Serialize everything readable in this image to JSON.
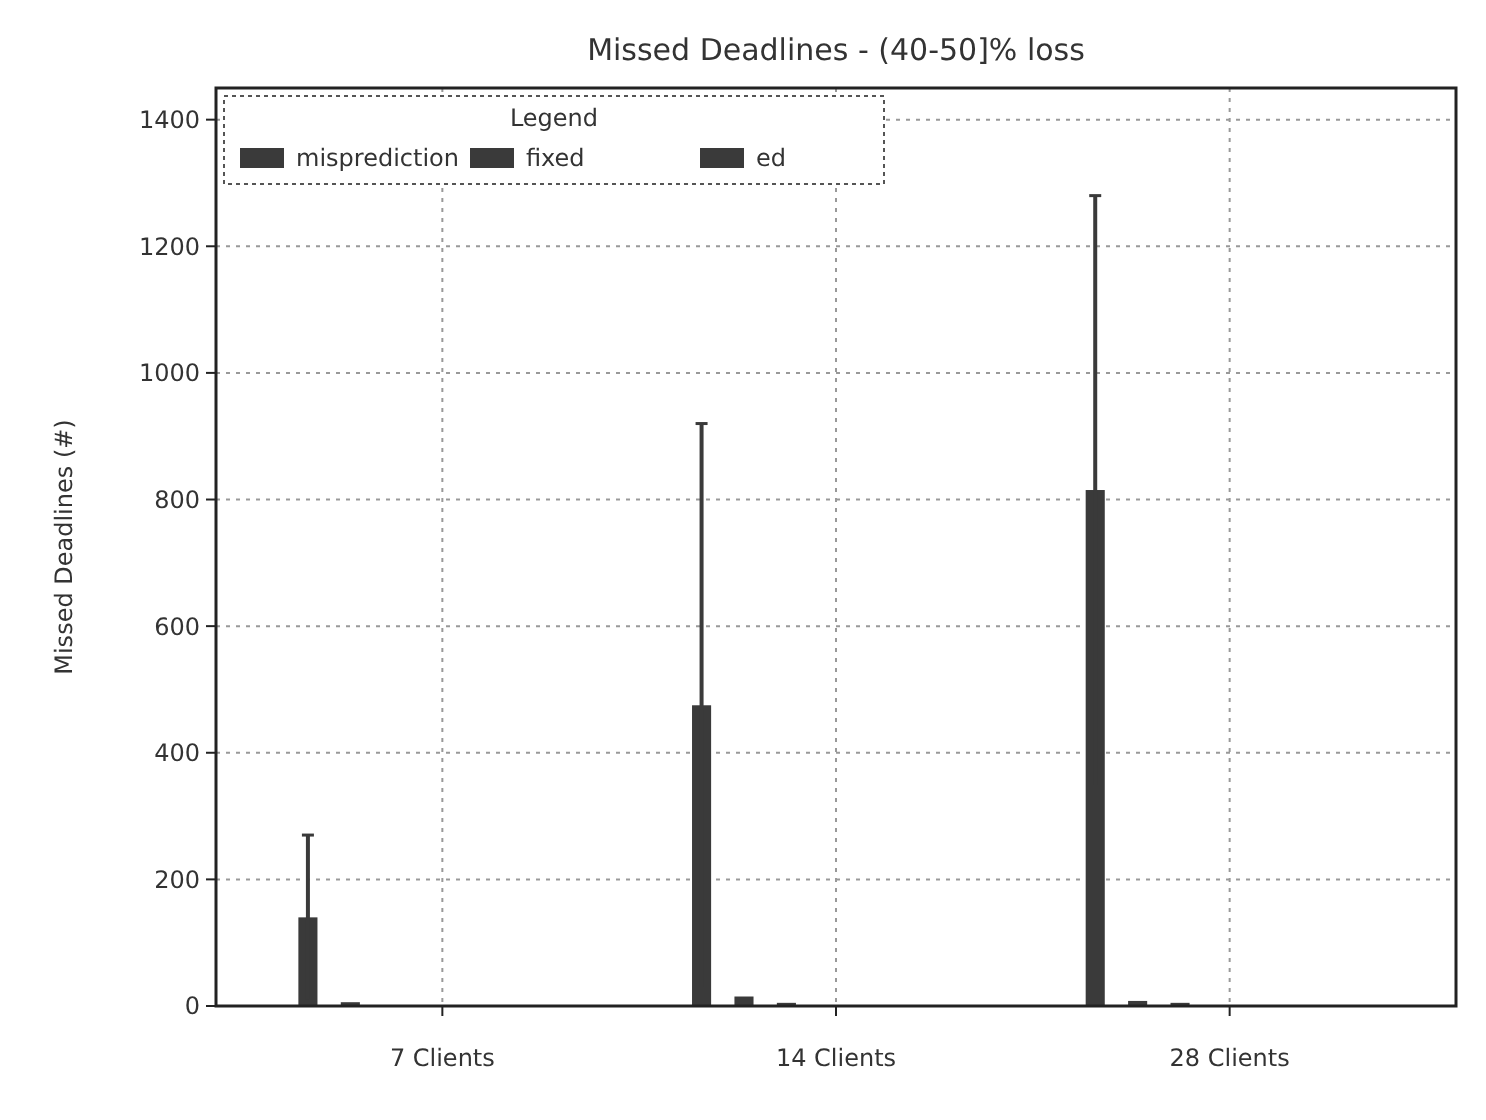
{
  "chart_data": {
    "type": "bar",
    "title": "Missed Deadlines - (40-50]% loss",
    "ylabel": "Missed Deadlines (#)",
    "legend_title": "Legend",
    "categories": [
      "7 Clients",
      "14 Clients",
      "28 Clients"
    ],
    "series": [
      {
        "name": "misprediction",
        "color": "#3a3a3a",
        "values": [
          140,
          475,
          815
        ],
        "errors": [
          130,
          445,
          465
        ]
      },
      {
        "name": "fixed",
        "color": "#3a3a3a",
        "values": [
          6,
          15,
          8
        ]
      },
      {
        "name": "ed",
        "color": "#3a3a3a",
        "values": [
          null,
          5,
          5
        ]
      }
    ],
    "ylim": [
      0,
      1450
    ],
    "yticks": [
      0,
      200,
      400,
      600,
      800,
      1000,
      1200,
      1400
    ],
    "grid": true,
    "legend": "top left"
  }
}
